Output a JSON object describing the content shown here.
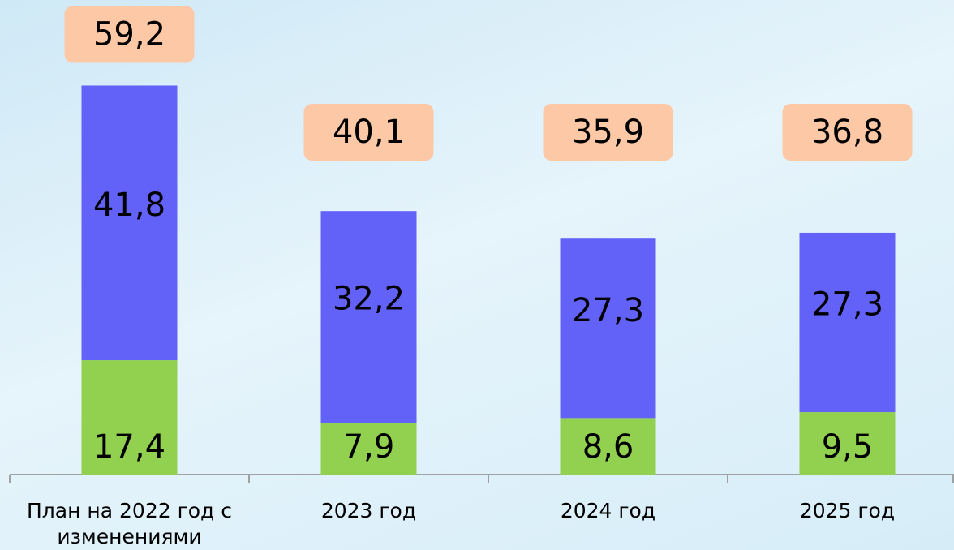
{
  "chart_data": {
    "type": "bar",
    "stacked": true,
    "categories": [
      "План на 2022 год с изменениями",
      "2023 год",
      "2024 год",
      "2025 год"
    ],
    "series": [
      {
        "color": "#92d050",
        "values": [
          17.4,
          7.9,
          8.6,
          9.5
        ],
        "value_labels": [
          "17,4",
          "7,9",
          "8,6",
          "9,5"
        ]
      },
      {
        "color": "#6262f8",
        "values": [
          41.8,
          32.2,
          27.3,
          27.3
        ],
        "value_labels": [
          "41,8",
          "32,2",
          "27,3",
          "27,3"
        ]
      }
    ],
    "totals": [
      59.2,
      40.1,
      35.9,
      36.8
    ],
    "totals_labels": [
      "59,2",
      "40,1",
      "35,9",
      "36,8"
    ],
    "totals_color": "#fdc8a6",
    "ylim": [
      0,
      60
    ]
  }
}
